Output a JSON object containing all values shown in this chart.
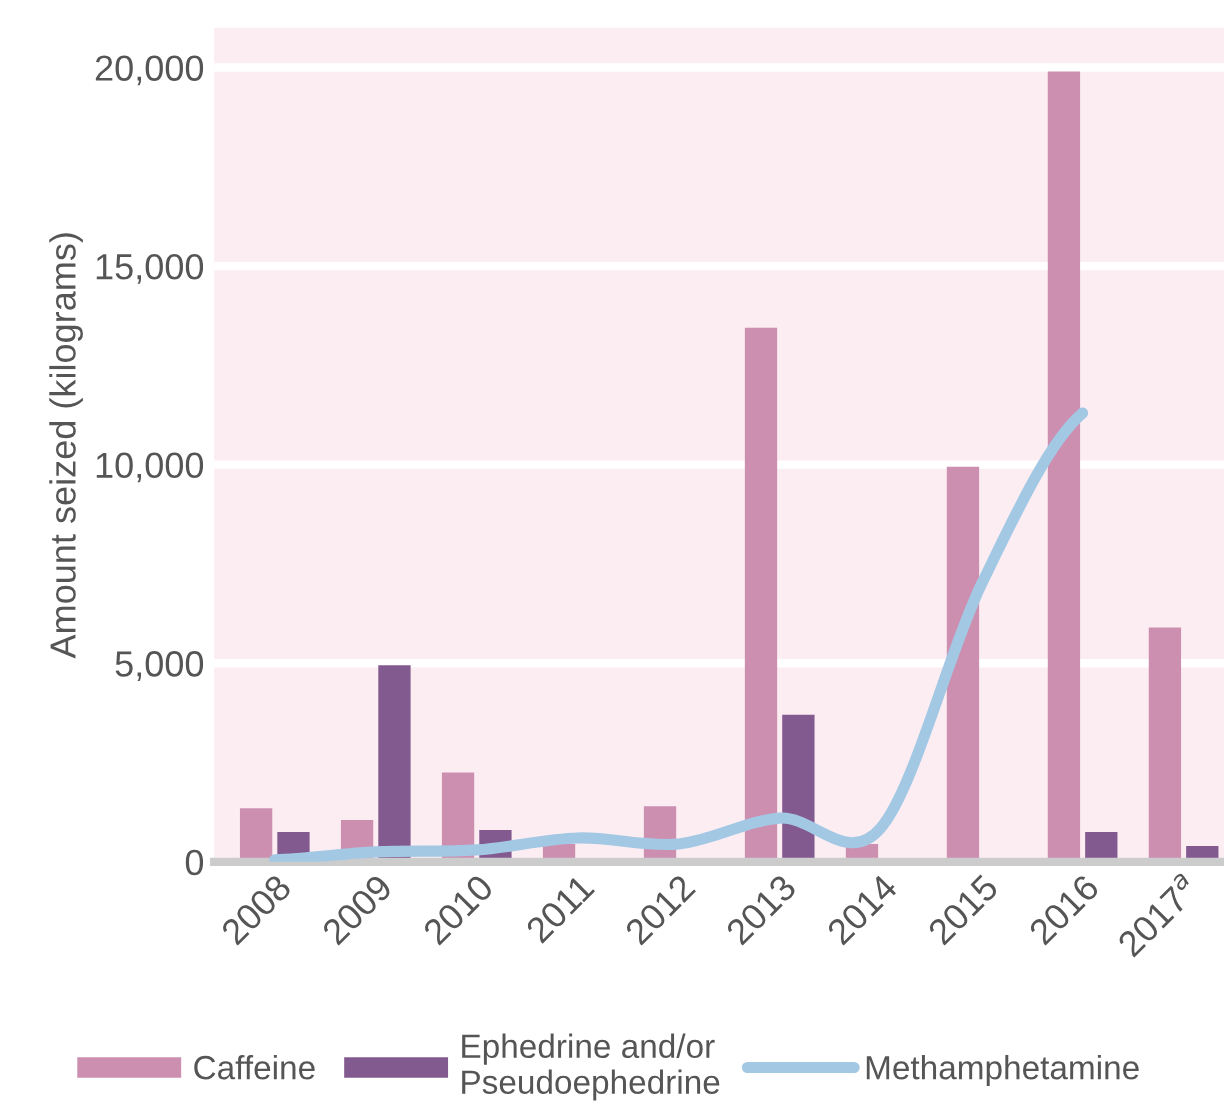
{
  "chart_data": {
    "type": "bar",
    "ylabel": "Amount seized (kilograms)",
    "categories": [
      "2008",
      "2009",
      "2010",
      "2011",
      "2012",
      "2013",
      "2014",
      "2015",
      "2016",
      "2017$^{a}$"
    ],
    "series": [
      {
        "name": "Caffeine",
        "color": "#cc8fb0",
        "values": [
          1350,
          1050,
          2250,
          450,
          1400,
          13450,
          450,
          9950,
          19900,
          5900
        ]
      },
      {
        "name": "Ephedrine and/or\nPseudoephedrine",
        "color": "#835a8f",
        "values": [
          750,
          4950,
          800,
          null,
          null,
          3700,
          null,
          null,
          750,
          400
        ]
      },
      {
        "name": "Methamphetamine",
        "type": "line",
        "color": "#a3c8e4",
        "values": [
          50,
          250,
          300,
          600,
          450,
          1100,
          850,
          7000,
          11300,
          null
        ]
      }
    ],
    "ylim": [
      0,
      21000
    ],
    "yticks": [
      {
        "value": 0,
        "label": "0"
      },
      {
        "value": 5000,
        "label": "5,000"
      },
      {
        "value": 10000,
        "label": "10,000"
      },
      {
        "value": 15000,
        "label": "15,000"
      },
      {
        "value": 20000,
        "label": "20,000"
      }
    ],
    "grid": "y",
    "legend": "bottom"
  }
}
